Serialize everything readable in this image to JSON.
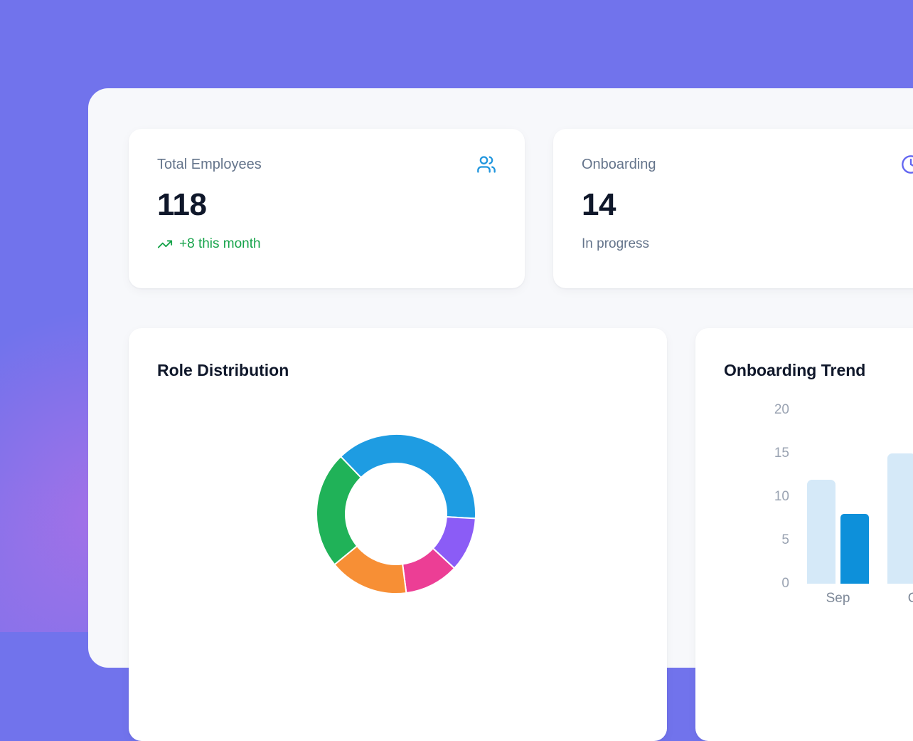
{
  "theme": {
    "backdrop": "#7173EC",
    "glow_pink": "#E96EE1",
    "panel_bg": "#F7F8FB",
    "card_bg": "#FFFFFF",
    "text_dark": "#0F172A",
    "text_muted": "#64748B",
    "axis_text": "#9AA3B2",
    "xaxis_text": "#7D8898",
    "green": "#16A34A",
    "icon_blue": "#2196DE",
    "icon_indigo": "#6366F1"
  },
  "stats": [
    {
      "label": "Total Employees",
      "value": "118",
      "trend_text": "+8 this month",
      "icon": "users-icon",
      "icon_color": "#2196DE",
      "trend_color": "#16A34A"
    },
    {
      "label": "Onboarding",
      "value": "14",
      "sub_text": "In progress",
      "icon": "clock-icon",
      "icon_color": "#6366F1"
    }
  ],
  "chart_data": [
    {
      "type": "pie",
      "title": "Role Distribution",
      "donut": true,
      "start_angle_deg": -44,
      "total": 118,
      "slices": [
        {
          "name": "blue-segment",
          "value": 45,
          "color": "#1E9CE2"
        },
        {
          "name": "violet-segment",
          "value": 13,
          "color": "#8B5CF6"
        },
        {
          "name": "pink-segment",
          "value": 13,
          "color": "#EC3E95"
        },
        {
          "name": "orange-segment",
          "value": 19,
          "color": "#F78F35"
        },
        {
          "name": "green-segment",
          "value": 28,
          "color": "#20B258"
        }
      ],
      "legend": false
    },
    {
      "type": "bar",
      "title": "Onboarding Trend",
      "categories": [
        "Sep",
        "Oct"
      ],
      "series": [
        {
          "name": "light-blue-series",
          "color": "#D5E9F8",
          "values": [
            12,
            15
          ]
        },
        {
          "name": "dark-blue-series",
          "color": "#0D90DA",
          "values": [
            8,
            null
          ]
        }
      ],
      "ylabel": "",
      "xlabel": "",
      "ylim": [
        0,
        20
      ],
      "yticks": [
        0,
        5,
        10,
        15,
        20
      ],
      "grid": false,
      "legend_position": "none"
    }
  ]
}
